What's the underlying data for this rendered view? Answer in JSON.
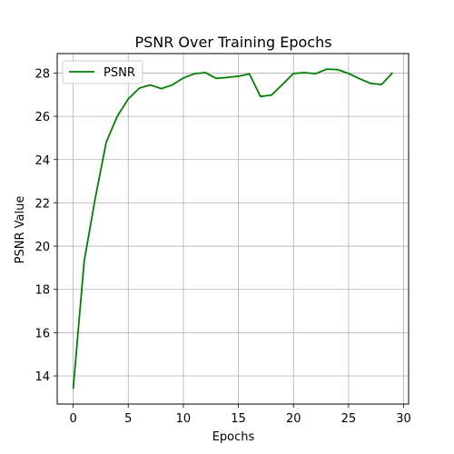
{
  "chart_data": {
    "type": "line",
    "title": "PSNR Over Training Epochs",
    "xlabel": "Epochs",
    "ylabel": "PSNR Value",
    "xlim": [
      -1.45,
      30.45
    ],
    "ylim": [
      12.7,
      28.9
    ],
    "xticks": [
      0,
      5,
      10,
      15,
      20,
      25,
      30
    ],
    "yticks": [
      14,
      16,
      18,
      20,
      22,
      24,
      26,
      28
    ],
    "grid": true,
    "legend_position": "top-left",
    "series": [
      {
        "name": "PSNR",
        "color": "#008000",
        "x": [
          0,
          1,
          2,
          3,
          4,
          5,
          6,
          7,
          8,
          9,
          10,
          11,
          12,
          13,
          14,
          15,
          16,
          17,
          18,
          19,
          20,
          21,
          22,
          23,
          24,
          25,
          26,
          27,
          28,
          29
        ],
        "y": [
          13.4,
          19.3,
          22.2,
          24.8,
          26.0,
          26.8,
          27.3,
          27.45,
          27.28,
          27.45,
          27.77,
          27.97,
          28.02,
          27.75,
          27.8,
          27.85,
          27.96,
          26.92,
          26.98,
          27.47,
          27.98,
          28.02,
          27.97,
          28.18,
          28.16,
          27.98,
          27.74,
          27.52,
          27.47,
          28.02
        ]
      }
    ]
  }
}
